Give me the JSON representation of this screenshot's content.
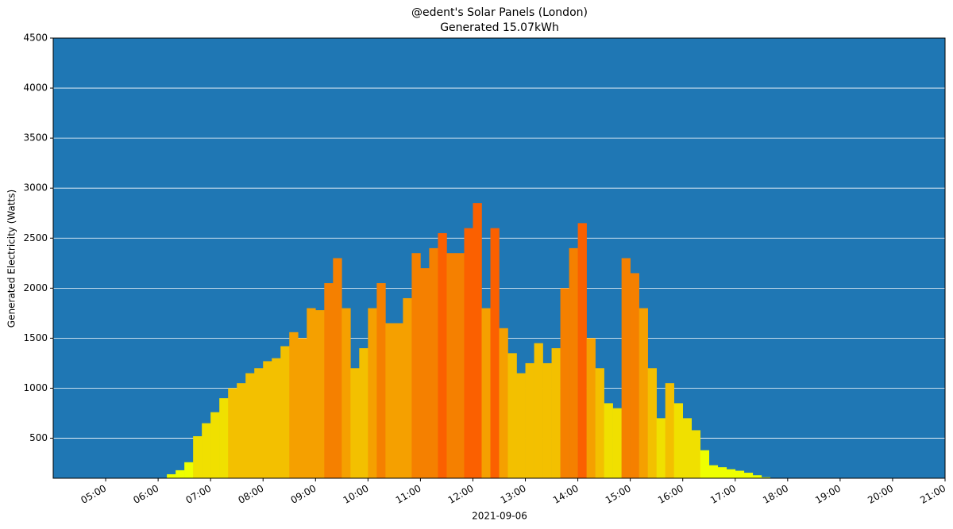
{
  "chart_data": {
    "type": "bar",
    "title": "@edent's Solar Panels (London)",
    "subtitle": "Generated 15.07kWh",
    "x_label": "2021-09-06",
    "y_label": "Generated Electricity (Watts)",
    "x": [
      "06:10",
      "06:20",
      "06:30",
      "06:40",
      "06:50",
      "07:00",
      "07:10",
      "07:20",
      "07:30",
      "07:40",
      "07:50",
      "08:00",
      "08:10",
      "08:20",
      "08:30",
      "08:40",
      "08:50",
      "09:00",
      "09:10",
      "09:20",
      "09:30",
      "09:40",
      "09:50",
      "10:00",
      "10:10",
      "10:20",
      "10:30",
      "10:40",
      "10:50",
      "11:00",
      "11:10",
      "11:20",
      "11:30",
      "11:40",
      "11:50",
      "12:00",
      "12:10",
      "12:20",
      "12:30",
      "12:40",
      "12:50",
      "13:00",
      "13:10",
      "13:20",
      "13:30",
      "13:40",
      "13:50",
      "14:00",
      "14:10",
      "14:20",
      "14:30",
      "14:40",
      "14:50",
      "15:00",
      "15:10",
      "15:20",
      "15:30",
      "15:40",
      "15:50",
      "16:00",
      "16:10",
      "16:20",
      "16:30",
      "16:40",
      "16:50",
      "17:00",
      "17:10",
      "17:20",
      "17:30"
    ],
    "values": [
      140,
      180,
      260,
      520,
      650,
      760,
      900,
      1000,
      1050,
      1150,
      1200,
      1270,
      1300,
      1420,
      1560,
      1500,
      1800,
      1780,
      2050,
      2300,
      1800,
      1200,
      1400,
      1800,
      2050,
      1650,
      1650,
      1900,
      2350,
      2200,
      2400,
      2550,
      2350,
      2350,
      2600,
      2850,
      1800,
      2600,
      1600,
      1350,
      1150,
      1250,
      1450,
      1250,
      1400,
      2000,
      2400,
      2650,
      1500,
      1200,
      850,
      800,
      2300,
      2150,
      1800,
      1200,
      700,
      1050,
      850,
      700,
      580,
      380,
      230,
      210,
      190,
      175,
      155,
      130,
      110
    ],
    "colors": [
      "#eeff00",
      "#eeff00",
      "#eeff00",
      "#f0e000",
      "#f0e000",
      "#f0e000",
      "#f0e000",
      "#f3c000",
      "#f3c000",
      "#f3c000",
      "#f3c000",
      "#f3c000",
      "#f3c000",
      "#f3c000",
      "#f5a000",
      "#f5a000",
      "#f5a000",
      "#f5a000",
      "#f58000",
      "#f58000",
      "#f5a000",
      "#f3c000",
      "#f3c000",
      "#f5a000",
      "#f58000",
      "#f5a000",
      "#f5a000",
      "#f5a000",
      "#f58000",
      "#f58000",
      "#f58000",
      "#fb6000",
      "#f58000",
      "#f58000",
      "#fb6000",
      "#fb6000",
      "#f5a000",
      "#fb6000",
      "#f5a000",
      "#f3c000",
      "#f3c000",
      "#f3c000",
      "#f3c000",
      "#f3c000",
      "#f3c000",
      "#f58000",
      "#f58000",
      "#fb6000",
      "#f5a000",
      "#f3c000",
      "#f0e000",
      "#f0e000",
      "#f58000",
      "#f58000",
      "#f5a000",
      "#f3c000",
      "#f0e000",
      "#f3c000",
      "#f0e000",
      "#f0e000",
      "#f0e000",
      "#eeff00",
      "#eeff00",
      "#eeff00",
      "#eeff00",
      "#eeff00",
      "#eeff00",
      "#eeff00",
      "#eeff00"
    ],
    "bar_minutes": 10,
    "background": "#1f77b4",
    "xlim": [
      "04:00",
      "21:00"
    ],
    "xticks": [
      "05:00",
      "06:00",
      "07:00",
      "08:00",
      "09:00",
      "10:00",
      "11:00",
      "12:00",
      "13:00",
      "14:00",
      "15:00",
      "16:00",
      "17:00",
      "18:00",
      "19:00",
      "20:00",
      "21:00"
    ],
    "ylim": [
      100,
      4500
    ],
    "yticks": [
      500,
      1000,
      1500,
      2000,
      2500,
      3000,
      3500,
      4000,
      4500
    ],
    "grid": true
  }
}
